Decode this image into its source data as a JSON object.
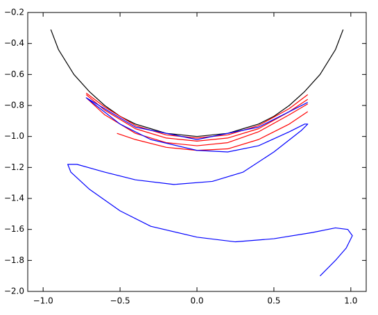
{
  "chart_data": {
    "type": "line",
    "xlim": [
      -1.1,
      1.1
    ],
    "ylim": [
      -2.0,
      -0.2
    ],
    "xticks": [
      {
        "value": -1.0,
        "label": "−1.0"
      },
      {
        "value": -0.5,
        "label": "−0.5"
      },
      {
        "value": 0.0,
        "label": "0.0"
      },
      {
        "value": 0.5,
        "label": "0.5"
      },
      {
        "value": 1.0,
        "label": "1.0"
      }
    ],
    "yticks": [
      {
        "value": -2.0,
        "label": "−2.0"
      },
      {
        "value": -1.8,
        "label": "−1.8"
      },
      {
        "value": -1.6,
        "label": "−1.6"
      },
      {
        "value": -1.4,
        "label": "−1.4"
      },
      {
        "value": -1.2,
        "label": "−1.2"
      },
      {
        "value": -1.0,
        "label": "−1.0"
      },
      {
        "value": -0.8,
        "label": "−0.8"
      },
      {
        "value": -0.6,
        "label": "−0.6"
      },
      {
        "value": -0.4,
        "label": "−0.4"
      },
      {
        "value": -0.2,
        "label": "−0.2"
      }
    ],
    "series": [
      {
        "color": "#000000",
        "x": [
          -0.95,
          -0.9,
          -0.8,
          -0.7,
          -0.6,
          -0.5,
          -0.4,
          -0.3,
          -0.2,
          -0.1,
          0.0,
          0.1,
          0.2,
          0.3,
          0.4,
          0.5,
          0.6,
          0.7,
          0.8,
          0.9,
          0.95
        ],
        "values": [
          -0.31,
          -0.44,
          -0.6,
          -0.71,
          -0.8,
          -0.87,
          -0.92,
          -0.95,
          -0.98,
          -0.99,
          -1.0,
          -0.99,
          -0.98,
          -0.95,
          -0.92,
          -0.87,
          -0.8,
          -0.71,
          -0.6,
          -0.44,
          -0.31
        ]
      },
      {
        "color": "#ff0000",
        "x": [
          -0.72,
          -0.6,
          -0.4,
          -0.2,
          0.0,
          0.2,
          0.4,
          0.6,
          0.72
        ],
        "values": [
          -0.72,
          -0.81,
          -0.93,
          -0.99,
          -1.01,
          -0.99,
          -0.93,
          -0.82,
          -0.73
        ]
      },
      {
        "color": "#ff0000",
        "x": [
          -0.72,
          -0.6,
          -0.4,
          -0.2,
          0.0,
          0.2,
          0.4,
          0.6,
          0.72
        ],
        "values": [
          -0.73,
          -0.83,
          -0.95,
          -1.01,
          -1.03,
          -1.01,
          -0.95,
          -0.84,
          -0.76
        ]
      },
      {
        "color": "#ff0000",
        "x": [
          -0.72,
          -0.6,
          -0.4,
          -0.2,
          0.0,
          0.2,
          0.4,
          0.6,
          0.72
        ],
        "values": [
          -0.75,
          -0.86,
          -0.98,
          -1.04,
          -1.06,
          -1.04,
          -0.97,
          -0.86,
          -0.79
        ]
      },
      {
        "color": "#ff0000",
        "x": [
          -0.52,
          -0.4,
          -0.2,
          0.0,
          0.2,
          0.4,
          0.6,
          0.72
        ],
        "values": [
          -0.98,
          -1.02,
          -1.07,
          -1.09,
          -1.08,
          -1.02,
          -0.92,
          -0.84
        ]
      },
      {
        "color": "#0000ff",
        "x": [
          0.72,
          0.4,
          0.0,
          -0.4,
          -0.72,
          -0.5,
          -0.3,
          0.0,
          0.2,
          0.4,
          0.6,
          0.7,
          0.72,
          0.68,
          0.5,
          0.3,
          0.1,
          -0.15,
          -0.4,
          -0.6,
          -0.78,
          -0.84,
          -0.82,
          -0.7,
          -0.5,
          -0.3,
          0.0,
          0.25,
          0.5,
          0.75,
          0.9,
          0.98,
          1.01,
          0.97,
          0.9,
          0.8
        ],
        "values": [
          -0.78,
          -0.94,
          -1.02,
          -0.94,
          -0.75,
          -0.92,
          -1.02,
          -1.09,
          -1.1,
          -1.06,
          -0.97,
          -0.92,
          -0.92,
          -0.96,
          -1.1,
          -1.23,
          -1.29,
          -1.31,
          -1.28,
          -1.23,
          -1.18,
          -1.18,
          -1.23,
          -1.34,
          -1.48,
          -1.58,
          -1.65,
          -1.68,
          -1.66,
          -1.62,
          -1.59,
          -1.6,
          -1.64,
          -1.72,
          -1.8,
          -1.9
        ]
      }
    ]
  }
}
